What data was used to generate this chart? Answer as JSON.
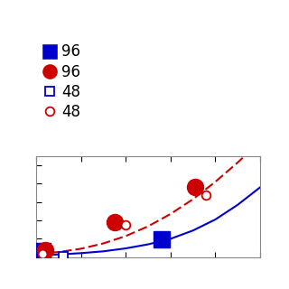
{
  "title": "",
  "xlabel": "",
  "ylabel": "",
  "xlim": [
    0.0,
    1.0
  ],
  "ylim": [
    0.0,
    0.55
  ],
  "legend_labels": [
    "96",
    "96",
    "48",
    "48"
  ],
  "blue_solid_points_x": [
    0.03,
    0.56
  ],
  "blue_solid_points_y": [
    0.035,
    0.095
  ],
  "red_dashed_points_x": [
    0.04,
    0.35,
    0.71
  ],
  "red_dashed_points_y": [
    0.04,
    0.19,
    0.38
  ],
  "blue_open_points_x": [
    0.12
  ],
  "blue_open_points_y": [
    0.005
  ],
  "red_open_points_x": [
    0.03,
    0.4,
    0.76
  ],
  "red_open_points_y": [
    0.02,
    0.175,
    0.34
  ],
  "blue_curve_x": [
    0.0,
    0.1,
    0.2,
    0.3,
    0.4,
    0.5,
    0.6,
    0.7,
    0.8,
    0.9,
    1.0
  ],
  "blue_curve_y": [
    0.01,
    0.015,
    0.022,
    0.032,
    0.048,
    0.07,
    0.1,
    0.145,
    0.205,
    0.285,
    0.38
  ],
  "red_curve_x": [
    0.0,
    0.1,
    0.2,
    0.3,
    0.4,
    0.5,
    0.6,
    0.7,
    0.8,
    0.9,
    1.0
  ],
  "red_curve_y": [
    0.018,
    0.028,
    0.046,
    0.075,
    0.115,
    0.168,
    0.235,
    0.315,
    0.41,
    0.515,
    0.63
  ],
  "blue_color": "#0000cc",
  "red_color": "#cc0000",
  "marker_size_large": 13,
  "marker_size_small": 7,
  "linewidth": 1.5,
  "figure_width": 3.2,
  "figure_height": 3.2,
  "dpi": 100
}
